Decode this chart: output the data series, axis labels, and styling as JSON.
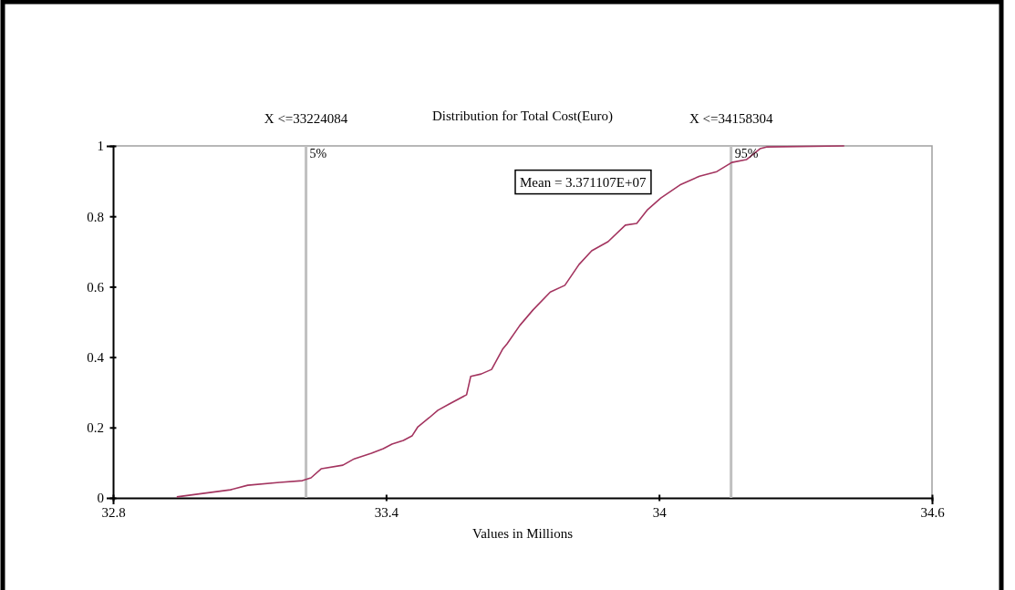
{
  "chart_data": {
    "type": "line",
    "title": "Distribution for Total Cost(Euro)",
    "xlabel": "Values in Millions",
    "xlim": [
      32.8,
      34.6
    ],
    "xticks": [
      32.8,
      33.4,
      34,
      34.6
    ],
    "ylim": [
      0,
      1
    ],
    "yticks": [
      0,
      0.2,
      0.4,
      0.6,
      0.8,
      1
    ],
    "grid": false,
    "marker": "none",
    "line_style": "solid",
    "series": [
      {
        "color": "#a3345f",
        "x": [
          32.94,
          33.058,
          33.096,
          33.166,
          33.216,
          33.235,
          33.258,
          33.305,
          33.33,
          33.368,
          33.394,
          33.413,
          33.438,
          33.457,
          33.47,
          33.495,
          33.514,
          33.539,
          33.577,
          33.586,
          33.609,
          33.632,
          33.656,
          33.666,
          33.694,
          33.723,
          33.761,
          33.793,
          33.824,
          33.852,
          33.888,
          33.926,
          33.951,
          33.975,
          34.004,
          34.046,
          34.089,
          34.127,
          34.16,
          34.192,
          34.222,
          34.236,
          34.407
        ],
        "values": [
          0.003,
          0.023,
          0.036,
          0.044,
          0.049,
          0.057,
          0.083,
          0.093,
          0.111,
          0.127,
          0.14,
          0.153,
          0.163,
          0.176,
          0.202,
          0.228,
          0.249,
          0.267,
          0.293,
          0.345,
          0.352,
          0.365,
          0.422,
          0.438,
          0.49,
          0.534,
          0.585,
          0.604,
          0.663,
          0.702,
          0.728,
          0.775,
          0.78,
          0.819,
          0.852,
          0.889,
          0.914,
          0.927,
          0.953,
          0.961,
          0.992,
          0.997,
          1
        ]
      }
    ],
    "ref_lines": [
      {
        "axis": "x",
        "value": 33.224084,
        "label": "X <=33224084",
        "color": "#c0c0c0"
      },
      {
        "axis": "x",
        "value": 34.158304,
        "label": "X <=34158304",
        "color": "#c0c0c0"
      }
    ],
    "annotations": [
      {
        "text": "5%",
        "x": 33.224084,
        "y": 1
      },
      {
        "text": "95%",
        "x": 34.158304,
        "y": 1
      },
      "Mean = 3.371107E+07"
    ]
  }
}
